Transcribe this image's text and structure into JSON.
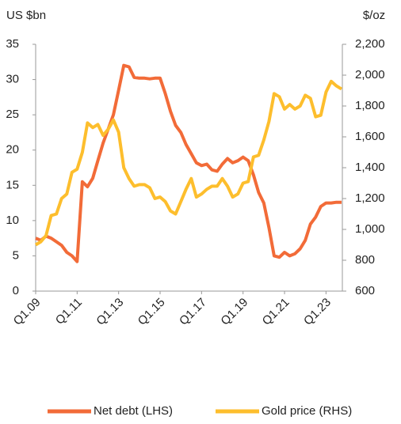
{
  "chart_data": {
    "type": "line",
    "ylabel": "US $bn",
    "y2label": "$/oz",
    "categories": [
      "Q1.09",
      null,
      null,
      null,
      null,
      null,
      null,
      null,
      "Q1.11",
      null,
      null,
      null,
      null,
      null,
      null,
      null,
      "Q1.13",
      null,
      null,
      null,
      null,
      null,
      null,
      null,
      "Q1.15",
      null,
      null,
      null,
      null,
      null,
      null,
      null,
      "Q1.17",
      null,
      null,
      null,
      null,
      null,
      null,
      null,
      "Q1.19",
      null,
      null,
      null,
      null,
      null,
      null,
      null,
      "Q1.21",
      null,
      null,
      null,
      null,
      null,
      null,
      null,
      "Q1.23",
      null,
      null,
      null
    ],
    "series": [
      {
        "name": "Net debt (LHS)",
        "color": "#f26b38",
        "axis": "y",
        "values": [
          7.5,
          7.2,
          7.8,
          7.5,
          7.0,
          6.5,
          5.5,
          5.0,
          4.2,
          15.5,
          14.8,
          16,
          18.5,
          21,
          23,
          25,
          28.5,
          32,
          31.8,
          30.3,
          30.2,
          30.2,
          30.1,
          30.2,
          30.2,
          28,
          25.5,
          23.5,
          22.5,
          20.8,
          19.5,
          18.2,
          17.8,
          18,
          17.2,
          17.0,
          18,
          18.8,
          18.2,
          18.5,
          19,
          18.5,
          16.5,
          14,
          12.5,
          9,
          5,
          4.8,
          5.5,
          5.0,
          5.3,
          6,
          7.2,
          9.5,
          10.5,
          12,
          12.5,
          12.5,
          12.6,
          12.6
        ]
      },
      {
        "name": "Gold price (RHS)",
        "color": "#fdbe2d",
        "axis": "y2",
        "values": [
          900,
          920,
          960,
          1090,
          1100,
          1200,
          1230,
          1370,
          1390,
          1500,
          1690,
          1660,
          1680,
          1610,
          1650,
          1710,
          1630,
          1400,
          1330,
          1280,
          1290,
          1290,
          1270,
          1200,
          1210,
          1180,
          1120,
          1100,
          1180,
          1260,
          1330,
          1210,
          1230,
          1260,
          1280,
          1280,
          1330,
          1280,
          1210,
          1230,
          1300,
          1310,
          1470,
          1480,
          1580,
          1700,
          1880,
          1860,
          1780,
          1810,
          1780,
          1800,
          1870,
          1850,
          1730,
          1740,
          1890,
          1960,
          1930,
          1910
        ]
      }
    ],
    "ylim": [
      0,
      35
    ],
    "yticks": [
      0,
      5,
      10,
      15,
      20,
      25,
      30,
      35
    ],
    "y2lim": [
      600,
      2200
    ],
    "y2ticks": [
      600,
      800,
      {
        "value": 1000,
        "label": "1,000"
      },
      {
        "value": 1200,
        "label": "1,200"
      },
      {
        "value": 1400,
        "label": "1,400"
      },
      {
        "value": 1600,
        "label": "1,600"
      },
      {
        "value": 1800,
        "label": "1,800"
      },
      {
        "value": 2000,
        "label": "2,000"
      },
      {
        "value": 2200,
        "label": "2,200"
      }
    ],
    "legend": "bottom"
  }
}
